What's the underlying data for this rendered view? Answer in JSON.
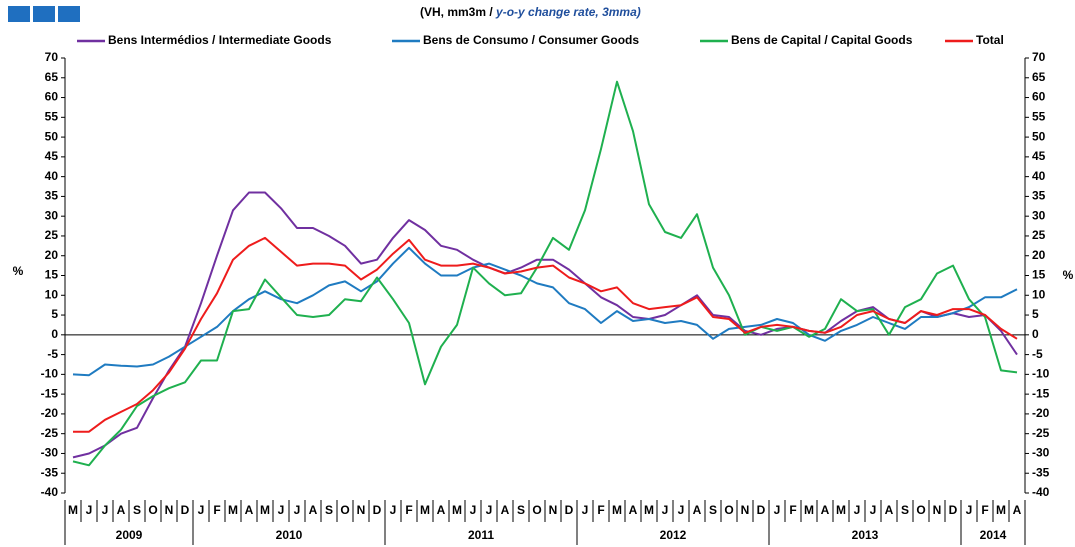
{
  "chart_data": {
    "type": "line",
    "title": "(VH, mm3m /",
    "subtitle": "y-o-y change rate, 3mma)",
    "y_label": "%",
    "y2_label": "%",
    "categories": [
      "M",
      "J",
      "J",
      "A",
      "S",
      "O",
      "N",
      "D",
      "J",
      "F",
      "M",
      "A",
      "M",
      "J",
      "J",
      "A",
      "S",
      "O",
      "N",
      "D",
      "J",
      "F",
      "M",
      "A",
      "M",
      "J",
      "J",
      "A",
      "S",
      "O",
      "N",
      "D",
      "J",
      "F",
      "M",
      "A",
      "M",
      "J",
      "J",
      "A",
      "S",
      "O",
      "N",
      "D",
      "J",
      "F",
      "M",
      "A",
      "M",
      "J",
      "J",
      "A",
      "S",
      "O",
      "N",
      "D",
      "J",
      "F",
      "M",
      "A"
    ],
    "years": [
      "2009",
      "2010",
      "2011",
      "2012",
      "2013",
      "2014"
    ],
    "ylim": [
      -40,
      70
    ],
    "yticks": [
      -40,
      -35,
      -30,
      -25,
      -20,
      -15,
      -10,
      -5,
      0,
      5,
      10,
      15,
      20,
      25,
      30,
      35,
      40,
      45,
      50,
      55,
      60,
      65,
      70
    ],
    "y2lim": [
      -40,
      70
    ],
    "y2ticks": [
      -40,
      -35,
      -30,
      -25,
      -20,
      -15,
      -10,
      -5,
      0,
      5,
      10,
      15,
      20,
      25,
      30,
      35,
      40,
      45,
      50,
      55,
      60,
      65,
      70
    ],
    "series": [
      {
        "name": "Bens Intermédios / Intermediate Goods",
        "color": "#7030a0",
        "values": [
          -31,
          -30,
          -28,
          -25,
          -23.5,
          -16,
          -9,
          -3,
          8,
          20,
          31.5,
          36,
          36,
          32,
          27,
          27,
          25,
          22.5,
          18,
          19,
          24.5,
          29,
          26.5,
          22.5,
          21.5,
          19,
          17,
          15.5,
          17,
          19,
          19,
          16.5,
          13,
          9.5,
          7.5,
          4.5,
          4,
          5,
          7.5,
          10,
          5,
          4.5,
          1,
          0,
          1.5,
          2,
          1,
          0.5,
          3.5,
          6,
          7,
          4,
          3,
          6,
          4.5,
          5.5,
          4.5,
          5,
          1,
          -5
        ]
      },
      {
        "name": "Bens de Consumo / Consumer Goods",
        "color": "#1f7bc1",
        "values": [
          -10,
          -10.2,
          -7.5,
          -7.8,
          -8,
          -7.5,
          -5.5,
          -3,
          -0.5,
          2,
          6,
          9,
          11,
          9,
          8,
          10,
          12.5,
          13.5,
          11,
          13.5,
          18,
          22,
          18,
          15,
          15,
          17,
          18,
          16.5,
          15,
          13,
          12,
          8,
          6.5,
          3,
          6,
          3.5,
          4,
          3,
          3.5,
          2.5,
          -1,
          1.5,
          2,
          2.5,
          4,
          3,
          0,
          -1.5,
          1,
          2.5,
          4.5,
          3,
          1.5,
          4.5,
          4.5,
          5.5,
          7,
          9.5,
          9.5,
          11.5
        ]
      },
      {
        "name": "Bens de Capital / Capital Goods",
        "color": "#1fb04f",
        "values": [
          -32,
          -33,
          -28,
          -24,
          -18,
          -15.5,
          -13.5,
          -12,
          -6.5,
          -6.5,
          6,
          6.5,
          14,
          9.5,
          5,
          4.5,
          5,
          9,
          8.5,
          14.5,
          9,
          3,
          -12.5,
          -3,
          2.5,
          17,
          13,
          10,
          10.5,
          17,
          24.5,
          21.5,
          31.5,
          47,
          64,
          51.5,
          33,
          26,
          24.5,
          30.5,
          17,
          10,
          0,
          2,
          1,
          2,
          -0.5,
          1.5,
          9,
          6,
          6.5,
          0,
          7,
          9,
          15.5,
          17.5,
          9,
          4.5,
          -9,
          -9.5
        ]
      },
      {
        "name": "Total",
        "color": "#ee1c1c",
        "values": [
          -24.5,
          -24.5,
          -21.5,
          -19.5,
          -17.5,
          -14,
          -9.5,
          -3.5,
          4,
          10.5,
          19,
          22.5,
          24.5,
          21,
          17.5,
          18,
          18,
          17.5,
          14,
          16.5,
          20.5,
          24,
          19,
          17.5,
          17.5,
          18,
          17,
          15.5,
          16,
          17,
          17.5,
          14.5,
          13,
          11,
          12,
          8,
          6.5,
          7,
          7.5,
          9.5,
          4.5,
          4,
          0.5,
          2,
          2.5,
          2,
          1,
          0.5,
          2,
          5,
          6,
          4,
          3,
          6,
          5,
          6.5,
          6.5,
          5,
          1.5,
          -1
        ]
      }
    ]
  }
}
